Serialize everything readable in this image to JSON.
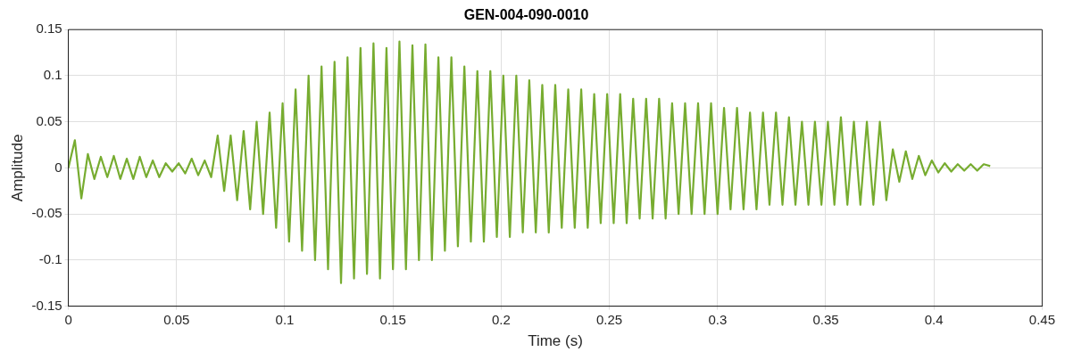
{
  "chart_data": {
    "type": "line",
    "title": "GEN-004-090-0010",
    "xlabel": "Time (s)",
    "ylabel": "Amplitude",
    "xlim": [
      0,
      0.45
    ],
    "xticks": [
      0,
      0.05,
      0.1,
      0.15,
      0.2,
      0.25,
      0.3,
      0.35,
      0.4,
      0.45
    ],
    "ylim": [
      -0.15,
      0.15
    ],
    "yticks": [
      -0.15,
      -0.1,
      -0.05,
      0,
      0.05,
      0.1,
      0.15
    ],
    "grid": true,
    "legend": false,
    "marker": "none",
    "line_style": "solid",
    "series": [
      {
        "color": "#77ac30",
        "x": [
          0,
          0.003,
          0.006,
          0.009,
          0.012,
          0.015,
          0.018,
          0.021,
          0.024,
          0.027,
          0.03,
          0.033,
          0.036,
          0.039,
          0.042,
          0.045,
          0.048,
          0.051,
          0.054,
          0.057,
          0.06,
          0.063,
          0.066,
          0.069,
          0.072,
          0.075,
          0.078,
          0.081,
          0.084,
          0.087,
          0.09,
          0.093,
          0.096,
          0.099,
          0.102,
          0.105,
          0.108,
          0.111,
          0.114,
          0.117,
          0.12,
          0.123,
          0.126,
          0.129,
          0.132,
          0.135,
          0.138,
          0.141,
          0.144,
          0.147,
          0.15,
          0.153,
          0.156,
          0.159,
          0.162,
          0.165,
          0.168,
          0.171,
          0.174,
          0.177,
          0.18,
          0.183,
          0.186,
          0.189,
          0.192,
          0.195,
          0.198,
          0.201,
          0.204,
          0.207,
          0.21,
          0.213,
          0.216,
          0.219,
          0.222,
          0.225,
          0.228,
          0.231,
          0.234,
          0.237,
          0.24,
          0.243,
          0.246,
          0.249,
          0.252,
          0.255,
          0.258,
          0.261,
          0.264,
          0.267,
          0.27,
          0.273,
          0.276,
          0.279,
          0.282,
          0.285,
          0.288,
          0.291,
          0.294,
          0.297,
          0.3,
          0.303,
          0.306,
          0.309,
          0.312,
          0.315,
          0.318,
          0.321,
          0.324,
          0.327,
          0.33,
          0.333,
          0.336,
          0.339,
          0.342,
          0.345,
          0.348,
          0.351,
          0.354,
          0.357,
          0.36,
          0.363,
          0.366,
          0.369,
          0.372,
          0.375,
          0.378,
          0.381,
          0.384,
          0.387,
          0.39,
          0.393,
          0.396,
          0.399,
          0.402,
          0.405,
          0.408,
          0.411,
          0.414,
          0.417,
          0.42,
          0.423,
          0.426
        ],
        "values": [
          0,
          0.03,
          -0.033,
          0.015,
          -0.012,
          0.012,
          -0.01,
          0.013,
          -0.012,
          0.01,
          -0.012,
          0.012,
          -0.01,
          0.008,
          -0.01,
          0.005,
          -0.004,
          0.005,
          -0.006,
          0.01,
          -0.008,
          0.008,
          -0.01,
          0.035,
          -0.025,
          0.035,
          -0.035,
          0.04,
          -0.045,
          0.05,
          -0.05,
          0.06,
          -0.065,
          0.07,
          -0.08,
          0.085,
          -0.09,
          0.1,
          -0.1,
          0.11,
          -0.11,
          0.115,
          -0.125,
          0.12,
          -0.12,
          0.13,
          -0.115,
          0.135,
          -0.12,
          0.13,
          -0.11,
          0.137,
          -0.11,
          0.133,
          -0.1,
          0.134,
          -0.1,
          0.12,
          -0.09,
          0.12,
          -0.085,
          0.11,
          -0.08,
          0.105,
          -0.08,
          0.105,
          -0.075,
          0.1,
          -0.075,
          0.1,
          -0.07,
          0.095,
          -0.07,
          0.09,
          -0.07,
          0.09,
          -0.065,
          0.085,
          -0.065,
          0.085,
          -0.065,
          0.08,
          -0.06,
          0.08,
          -0.06,
          0.08,
          -0.06,
          0.075,
          -0.055,
          0.075,
          -0.055,
          0.075,
          -0.055,
          0.07,
          -0.05,
          0.07,
          -0.05,
          0.07,
          -0.05,
          0.07,
          -0.05,
          0.065,
          -0.045,
          0.065,
          -0.045,
          0.06,
          -0.045,
          0.06,
          -0.04,
          0.06,
          -0.04,
          0.055,
          -0.04,
          0.05,
          -0.04,
          0.05,
          -0.04,
          0.05,
          -0.04,
          0.055,
          -0.04,
          0.05,
          -0.04,
          0.05,
          -0.04,
          0.05,
          -0.035,
          0.02,
          -0.015,
          0.018,
          -0.012,
          0.013,
          -0.008,
          0.008,
          -0.005,
          0.005,
          -0.004,
          0.004,
          -0.003,
          0.004,
          -0.003,
          0.004,
          0.002
        ]
      }
    ]
  }
}
